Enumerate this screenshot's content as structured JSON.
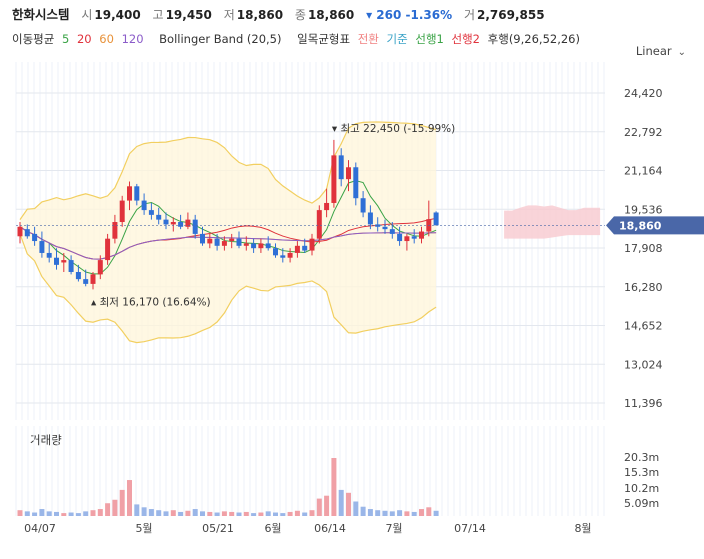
{
  "header": {
    "name": "한화시스템",
    "open_label": "시",
    "open": "19,400",
    "high_label": "고",
    "high": "19,450",
    "low_label": "저",
    "low": "18,860",
    "close_label": "종",
    "close": "18,860",
    "change": "▾ 260 -1.36%",
    "volume_label": "거",
    "volume": "2,769,855"
  },
  "indicators": {
    "ma_label": "이동평균",
    "ma5": "5",
    "ma20": "20",
    "ma60": "60",
    "ma120": "120",
    "bb": "Bollinger Band (20,5)",
    "ichimoku": "일목균형표",
    "tenkan": "전환",
    "kijun": "기준",
    "senkou1": "선행1",
    "senkou2": "선행2",
    "chikou": "후행(9,26,52,26)"
  },
  "scale_label": "Linear",
  "colors": {
    "up": "#e0323c",
    "down": "#2f6fd6",
    "current_tag": "#4a67a8"
  },
  "chart_data": {
    "type": "candlestick",
    "y_ticks": [
      "24,420",
      "22,792",
      "21,164",
      "19,536",
      "17,908",
      "16,280",
      "14,652",
      "13,024",
      "11,396"
    ],
    "ylim": [
      11396,
      24420
    ],
    "x_ticks": [
      "04/07",
      "5월",
      "05/21",
      "6월",
      "06/14",
      "7월",
      "07/14",
      "8월"
    ],
    "current_price": "18,860",
    "high_annotation": "최고 22,450 (-15.99%)",
    "low_annotation": "최저 16,170 (16.64%)",
    "candles": [
      {
        "o": 18400,
        "h": 19000,
        "l": 18100,
        "c": 18800
      },
      {
        "o": 18700,
        "h": 18900,
        "l": 18300,
        "c": 18400
      },
      {
        "o": 18500,
        "h": 18800,
        "l": 18000,
        "c": 18200
      },
      {
        "o": 18200,
        "h": 18600,
        "l": 17500,
        "c": 17700
      },
      {
        "o": 17700,
        "h": 18100,
        "l": 17300,
        "c": 17500
      },
      {
        "o": 17500,
        "h": 17900,
        "l": 17000,
        "c": 17200
      },
      {
        "o": 17300,
        "h": 17700,
        "l": 16900,
        "c": 17400
      },
      {
        "o": 17400,
        "h": 17600,
        "l": 16800,
        "c": 16900
      },
      {
        "o": 16900,
        "h": 17200,
        "l": 16500,
        "c": 16600
      },
      {
        "o": 16600,
        "h": 17000,
        "l": 16300,
        "c": 16400
      },
      {
        "o": 16400,
        "h": 16900,
        "l": 16170,
        "c": 16800
      },
      {
        "o": 16800,
        "h": 17600,
        "l": 16600,
        "c": 17400
      },
      {
        "o": 17400,
        "h": 18500,
        "l": 17200,
        "c": 18300
      },
      {
        "o": 18300,
        "h": 19300,
        "l": 18100,
        "c": 19000
      },
      {
        "o": 19000,
        "h": 20100,
        "l": 18800,
        "c": 19900
      },
      {
        "o": 19900,
        "h": 20700,
        "l": 19500,
        "c": 20500
      },
      {
        "o": 20500,
        "h": 20600,
        "l": 19700,
        "c": 19900
      },
      {
        "o": 19900,
        "h": 20200,
        "l": 19300,
        "c": 19500
      },
      {
        "o": 19500,
        "h": 19800,
        "l": 19100,
        "c": 19300
      },
      {
        "o": 19300,
        "h": 19600,
        "l": 18900,
        "c": 19100
      },
      {
        "o": 19100,
        "h": 19400,
        "l": 18700,
        "c": 18900
      },
      {
        "o": 18900,
        "h": 19200,
        "l": 18600,
        "c": 19000
      },
      {
        "o": 19000,
        "h": 19300,
        "l": 18700,
        "c": 18800
      },
      {
        "o": 18800,
        "h": 19400,
        "l": 18700,
        "c": 19100
      },
      {
        "o": 19100,
        "h": 19300,
        "l": 18300,
        "c": 18500
      },
      {
        "o": 18500,
        "h": 18800,
        "l": 18000,
        "c": 18100
      },
      {
        "o": 18100,
        "h": 18500,
        "l": 17900,
        "c": 18300
      },
      {
        "o": 18300,
        "h": 18500,
        "l": 17800,
        "c": 18000
      },
      {
        "o": 18000,
        "h": 18400,
        "l": 17800,
        "c": 18200
      },
      {
        "o": 18200,
        "h": 18500,
        "l": 17900,
        "c": 18300
      },
      {
        "o": 18300,
        "h": 18600,
        "l": 17900,
        "c": 18000
      },
      {
        "o": 18000,
        "h": 18400,
        "l": 17800,
        "c": 18100
      },
      {
        "o": 18100,
        "h": 18300,
        "l": 17700,
        "c": 17900
      },
      {
        "o": 17900,
        "h": 18300,
        "l": 17700,
        "c": 18100
      },
      {
        "o": 18100,
        "h": 18400,
        "l": 17800,
        "c": 17900
      },
      {
        "o": 17900,
        "h": 18100,
        "l": 17500,
        "c": 17600
      },
      {
        "o": 17600,
        "h": 17900,
        "l": 17300,
        "c": 17500
      },
      {
        "o": 17500,
        "h": 17900,
        "l": 17300,
        "c": 17700
      },
      {
        "o": 17700,
        "h": 18200,
        "l": 17500,
        "c": 18000
      },
      {
        "o": 18000,
        "h": 18300,
        "l": 17700,
        "c": 17800
      },
      {
        "o": 17800,
        "h": 18500,
        "l": 17600,
        "c": 18300
      },
      {
        "o": 18300,
        "h": 19700,
        "l": 18100,
        "c": 19500
      },
      {
        "o": 19500,
        "h": 20400,
        "l": 19200,
        "c": 19800
      },
      {
        "o": 19800,
        "h": 22450,
        "l": 19600,
        "c": 21800
      },
      {
        "o": 21800,
        "h": 22100,
        "l": 20500,
        "c": 20800
      },
      {
        "o": 20800,
        "h": 21600,
        "l": 20300,
        "c": 21300
      },
      {
        "o": 21300,
        "h": 21500,
        "l": 19700,
        "c": 20000
      },
      {
        "o": 20000,
        "h": 20300,
        "l": 19200,
        "c": 19400
      },
      {
        "o": 19400,
        "h": 19700,
        "l": 18700,
        "c": 18900
      },
      {
        "o": 18900,
        "h": 19200,
        "l": 18600,
        "c": 18800
      },
      {
        "o": 18800,
        "h": 19100,
        "l": 18500,
        "c": 18700
      },
      {
        "o": 18700,
        "h": 19000,
        "l": 18300,
        "c": 18500
      },
      {
        "o": 18500,
        "h": 18800,
        "l": 18000,
        "c": 18200
      },
      {
        "o": 18200,
        "h": 18500,
        "l": 17800,
        "c": 18400
      },
      {
        "o": 18400,
        "h": 18700,
        "l": 18100,
        "c": 18300
      },
      {
        "o": 18300,
        "h": 18800,
        "l": 18100,
        "c": 18600
      },
      {
        "o": 18600,
        "h": 19900,
        "l": 18400,
        "c": 19120
      },
      {
        "o": 19400,
        "h": 19450,
        "l": 18860,
        "c": 18860
      }
    ],
    "volumes_rel": [
      0.1,
      0.08,
      0.06,
      0.12,
      0.08,
      0.07,
      0.05,
      0.06,
      0.05,
      0.08,
      0.1,
      0.12,
      0.22,
      0.28,
      0.45,
      0.62,
      0.2,
      0.15,
      0.12,
      0.1,
      0.08,
      0.1,
      0.07,
      0.09,
      0.12,
      0.08,
      0.07,
      0.06,
      0.08,
      0.07,
      0.06,
      0.07,
      0.05,
      0.06,
      0.08,
      0.06,
      0.05,
      0.07,
      0.09,
      0.06,
      0.1,
      0.3,
      0.35,
      1.0,
      0.45,
      0.4,
      0.25,
      0.16,
      0.12,
      0.1,
      0.09,
      0.08,
      0.1,
      0.08,
      0.07,
      0.12,
      0.15,
      0.09
    ],
    "volume_ticks": [
      "20.3m",
      "15.3m",
      "10.2m",
      "5.09m"
    ],
    "volume_title": "거래량"
  }
}
